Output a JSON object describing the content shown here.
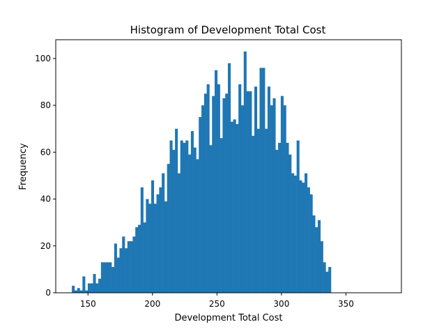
{
  "chart_data": {
    "type": "bar",
    "title": "Histogram of Development Total Cost",
    "xlabel": "Development Total Cost",
    "ylabel": "Frequency",
    "bar_color": "#1f77b4",
    "xlim": [
      125,
      393
    ],
    "ylim": [
      0,
      108
    ],
    "x_ticks": [
      150,
      200,
      250,
      300,
      350
    ],
    "y_ticks": [
      0,
      20,
      40,
      60,
      80,
      100
    ],
    "bin_start": 137.5,
    "bin_width": 2.05,
    "counts": [
      3,
      1,
      2,
      1,
      7,
      1,
      4,
      4,
      8,
      4,
      6,
      13,
      13,
      13,
      13,
      11,
      21,
      15,
      19,
      24,
      19,
      22,
      22,
      24,
      28,
      29,
      45,
      30,
      40,
      38,
      48,
      38,
      42,
      45,
      51,
      39,
      55,
      65,
      61,
      70,
      51,
      65,
      64,
      65,
      59,
      69,
      62,
      57,
      75,
      80,
      85,
      89,
      63,
      84,
      95,
      89,
      66,
      83,
      85,
      98,
      73,
      74,
      72,
      89,
      80,
      103,
      86,
      86,
      67,
      88,
      70,
      96,
      96,
      70,
      88,
      80,
      83,
      61,
      64,
      84,
      80,
      64,
      59,
      51,
      50,
      65,
      48,
      47,
      51,
      45,
      42,
      33,
      28,
      31,
      22,
      13,
      9,
      11
    ]
  }
}
